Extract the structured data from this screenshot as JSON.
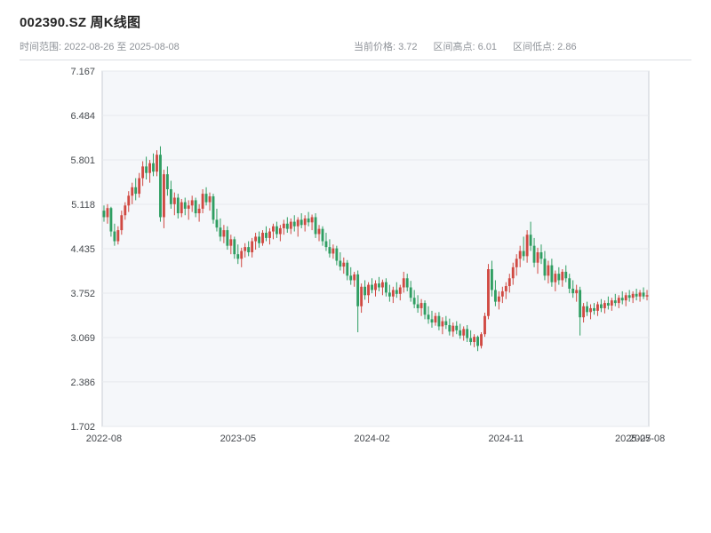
{
  "header": {
    "title": "002390.SZ 周K线图",
    "range_label": "时间范围: 2022-08-26 至 2025-08-08",
    "stat_price": "当前价格: 3.72",
    "stat_high": "区间高点: 6.01",
    "stat_low": "区间低点: 2.86"
  },
  "chart_data": {
    "type": "candlestick",
    "title": "002390.SZ 周K线图",
    "symbol": "002390.SZ",
    "period": "weekly",
    "start_date": "2022-08-26",
    "end_date": "2025-08-08",
    "current_price": 3.72,
    "range_high": 6.01,
    "range_low": 2.86,
    "ylim": [
      1.702,
      7.167
    ],
    "y_ticks": [
      "7.167",
      "6.484",
      "5.801",
      "5.118",
      "4.435",
      "3.752",
      "3.069",
      "2.386",
      "1.702"
    ],
    "x_ticks": [
      {
        "label": "2022-08",
        "index": 0
      },
      {
        "label": "2023-05",
        "index": 38
      },
      {
        "label": "2024-02",
        "index": 76
      },
      {
        "label": "2024-11",
        "index": 114
      },
      {
        "label": "2025-07",
        "index": 150
      },
      {
        "label": "2025-08",
        "index": 154
      }
    ],
    "colors": {
      "up": "#d04942",
      "down": "#2f9e62",
      "plot_bg": "#f5f7fa",
      "plot_border": "#c9ced4",
      "grid": "#e6e9ed"
    },
    "ohlc_format": [
      "open",
      "high",
      "low",
      "close"
    ],
    "ohlc": [
      [
        5.02,
        5.1,
        4.85,
        4.92
      ],
      [
        4.92,
        5.12,
        4.82,
        5.06
      ],
      [
        5.06,
        5.08,
        4.62,
        4.7
      ],
      [
        4.7,
        4.82,
        4.48,
        4.55
      ],
      [
        4.55,
        4.78,
        4.5,
        4.72
      ],
      [
        4.72,
        5.02,
        4.65,
        4.95
      ],
      [
        4.95,
        5.15,
        4.88,
        5.1
      ],
      [
        5.1,
        5.32,
        5.0,
        5.25
      ],
      [
        5.25,
        5.45,
        5.12,
        5.38
      ],
      [
        5.38,
        5.52,
        5.18,
        5.28
      ],
      [
        5.28,
        5.6,
        5.22,
        5.52
      ],
      [
        5.52,
        5.78,
        5.4,
        5.7
      ],
      [
        5.7,
        5.85,
        5.5,
        5.6
      ],
      [
        5.6,
        5.8,
        5.45,
        5.75
      ],
      [
        5.75,
        5.9,
        5.55,
        5.62
      ],
      [
        5.62,
        5.95,
        5.55,
        5.88
      ],
      [
        5.88,
        6.01,
        4.85,
        4.92
      ],
      [
        4.92,
        5.65,
        4.75,
        5.58
      ],
      [
        5.58,
        5.7,
        5.25,
        5.35
      ],
      [
        5.35,
        5.48,
        5.05,
        5.12
      ],
      [
        5.12,
        5.3,
        4.95,
        5.22
      ],
      [
        5.22,
        5.28,
        4.9,
        4.98
      ],
      [
        4.98,
        5.2,
        4.92,
        5.15
      ],
      [
        5.15,
        5.22,
        4.95,
        5.05
      ],
      [
        5.05,
        5.18,
        4.88,
        5.1
      ],
      [
        5.1,
        5.25,
        5.0,
        5.18
      ],
      [
        5.18,
        5.22,
        4.92,
        4.98
      ],
      [
        4.98,
        5.12,
        4.85,
        5.05
      ],
      [
        5.05,
        5.35,
        4.98,
        5.28
      ],
      [
        5.28,
        5.38,
        5.1,
        5.15
      ],
      [
        5.15,
        5.3,
        5.02,
        5.24
      ],
      [
        5.24,
        5.28,
        4.82,
        4.88
      ],
      [
        4.88,
        5.05,
        4.7,
        4.76
      ],
      [
        4.76,
        4.9,
        4.55,
        4.62
      ],
      [
        4.62,
        4.8,
        4.52,
        4.72
      ],
      [
        4.72,
        4.78,
        4.42,
        4.48
      ],
      [
        4.48,
        4.65,
        4.35,
        4.58
      ],
      [
        4.58,
        4.62,
        4.28,
        4.35
      ],
      [
        4.35,
        4.5,
        4.2,
        4.28
      ],
      [
        4.28,
        4.45,
        4.15,
        4.4
      ],
      [
        4.4,
        4.52,
        4.3,
        4.46
      ],
      [
        4.46,
        4.55,
        4.32,
        4.38
      ],
      [
        4.38,
        4.6,
        4.3,
        4.55
      ],
      [
        4.55,
        4.68,
        4.42,
        4.62
      ],
      [
        4.62,
        4.7,
        4.45,
        4.52
      ],
      [
        4.52,
        4.72,
        4.48,
        4.68
      ],
      [
        4.68,
        4.78,
        4.55,
        4.6
      ],
      [
        4.6,
        4.75,
        4.5,
        4.7
      ],
      [
        4.7,
        4.82,
        4.58,
        4.78
      ],
      [
        4.78,
        4.85,
        4.6,
        4.66
      ],
      [
        4.66,
        4.8,
        4.55,
        4.75
      ],
      [
        4.75,
        4.88,
        4.65,
        4.82
      ],
      [
        4.82,
        4.92,
        4.68,
        4.74
      ],
      [
        4.74,
        4.9,
        4.66,
        4.85
      ],
      [
        4.85,
        4.95,
        4.7,
        4.78
      ],
      [
        4.78,
        4.92,
        4.62,
        4.88
      ],
      [
        4.88,
        4.98,
        4.75,
        4.8
      ],
      [
        4.8,
        4.95,
        4.7,
        4.9
      ],
      [
        4.9,
        5.0,
        4.78,
        4.84
      ],
      [
        4.84,
        4.96,
        4.72,
        4.92
      ],
      [
        4.92,
        4.98,
        4.6,
        4.66
      ],
      [
        4.66,
        4.8,
        4.55,
        4.74
      ],
      [
        4.74,
        4.78,
        4.48,
        4.55
      ],
      [
        4.55,
        4.68,
        4.4,
        4.46
      ],
      [
        4.46,
        4.58,
        4.3,
        4.36
      ],
      [
        4.36,
        4.5,
        4.28,
        4.44
      ],
      [
        4.44,
        4.48,
        4.18,
        4.25
      ],
      [
        4.25,
        4.38,
        4.1,
        4.16
      ],
      [
        4.16,
        4.3,
        4.05,
        4.22
      ],
      [
        4.22,
        4.26,
        3.95,
        4.02
      ],
      [
        4.02,
        4.15,
        3.88,
        3.95
      ],
      [
        3.95,
        4.08,
        3.85,
        4.04
      ],
      [
        4.04,
        4.1,
        3.15,
        3.55
      ],
      [
        3.55,
        3.9,
        3.45,
        3.85
      ],
      [
        3.85,
        3.95,
        3.65,
        3.72
      ],
      [
        3.72,
        3.92,
        3.6,
        3.88
      ],
      [
        3.88,
        3.98,
        3.75,
        3.8
      ],
      [
        3.8,
        3.95,
        3.7,
        3.9
      ],
      [
        3.9,
        4.0,
        3.78,
        3.84
      ],
      [
        3.84,
        3.96,
        3.72,
        3.92
      ],
      [
        3.92,
        3.98,
        3.7,
        3.76
      ],
      [
        3.76,
        3.88,
        3.62,
        3.7
      ],
      [
        3.7,
        3.85,
        3.6,
        3.8
      ],
      [
        3.8,
        3.92,
        3.68,
        3.74
      ],
      [
        3.74,
        3.88,
        3.64,
        3.84
      ],
      [
        3.84,
        4.08,
        3.76,
        3.98
      ],
      [
        3.98,
        4.05,
        3.78,
        3.84
      ],
      [
        3.84,
        3.94,
        3.62,
        3.68
      ],
      [
        3.68,
        3.8,
        3.52,
        3.58
      ],
      [
        3.58,
        3.72,
        3.45,
        3.52
      ],
      [
        3.52,
        3.66,
        3.4,
        3.6
      ],
      [
        3.6,
        3.64,
        3.35,
        3.42
      ],
      [
        3.42,
        3.55,
        3.28,
        3.35
      ],
      [
        3.35,
        3.48,
        3.22,
        3.3
      ],
      [
        3.3,
        3.45,
        3.25,
        3.4
      ],
      [
        3.4,
        3.46,
        3.18,
        3.24
      ],
      [
        3.24,
        3.38,
        3.12,
        3.32
      ],
      [
        3.32,
        3.4,
        3.2,
        3.26
      ],
      [
        3.26,
        3.36,
        3.1,
        3.16
      ],
      [
        3.16,
        3.3,
        3.08,
        3.25
      ],
      [
        3.25,
        3.32,
        3.12,
        3.18
      ],
      [
        3.18,
        3.28,
        3.05,
        3.1
      ],
      [
        3.1,
        3.24,
        3.02,
        3.2
      ],
      [
        3.2,
        3.26,
        3.0,
        3.06
      ],
      [
        3.06,
        3.18,
        2.95,
        3.0
      ],
      [
        3.0,
        3.12,
        2.92,
        3.08
      ],
      [
        3.08,
        3.1,
        2.86,
        2.94
      ],
      [
        2.94,
        3.15,
        2.9,
        3.12
      ],
      [
        3.12,
        3.45,
        3.08,
        3.4
      ],
      [
        3.4,
        4.2,
        3.35,
        4.12
      ],
      [
        4.12,
        4.25,
        3.7,
        3.8
      ],
      [
        3.8,
        3.95,
        3.55,
        3.62
      ],
      [
        3.62,
        3.78,
        3.5,
        3.7
      ],
      [
        3.7,
        3.85,
        3.6,
        3.78
      ],
      [
        3.78,
        3.92,
        3.66,
        3.86
      ],
      [
        3.86,
        4.05,
        3.76,
        3.98
      ],
      [
        3.98,
        4.22,
        3.88,
        4.15
      ],
      [
        4.15,
        4.35,
        4.02,
        4.28
      ],
      [
        4.28,
        4.48,
        4.15,
        4.4
      ],
      [
        4.4,
        4.62,
        4.25,
        4.32
      ],
      [
        4.32,
        4.72,
        4.22,
        4.65
      ],
      [
        4.65,
        4.85,
        4.4,
        4.48
      ],
      [
        4.48,
        4.6,
        4.15,
        4.22
      ],
      [
        4.22,
        4.45,
        4.05,
        4.38
      ],
      [
        4.38,
        4.5,
        4.2,
        4.28
      ],
      [
        4.28,
        4.4,
        3.95,
        4.02
      ],
      [
        4.02,
        4.25,
        3.9,
        4.18
      ],
      [
        4.18,
        4.28,
        3.85,
        3.92
      ],
      [
        3.92,
        4.1,
        3.78,
        4.05
      ],
      [
        4.05,
        4.15,
        3.88,
        3.95
      ],
      [
        3.95,
        4.12,
        3.85,
        4.08
      ],
      [
        4.08,
        4.18,
        3.92,
        3.98
      ],
      [
        3.98,
        4.05,
        3.75,
        3.82
      ],
      [
        3.82,
        3.95,
        3.68,
        3.75
      ],
      [
        3.75,
        3.88,
        3.62,
        3.8
      ],
      [
        3.8,
        3.85,
        3.1,
        3.38
      ],
      [
        3.38,
        3.6,
        3.3,
        3.55
      ],
      [
        3.55,
        3.62,
        3.4,
        3.46
      ],
      [
        3.46,
        3.58,
        3.35,
        3.52
      ],
      [
        3.52,
        3.6,
        3.42,
        3.48
      ],
      [
        3.48,
        3.62,
        3.4,
        3.58
      ],
      [
        3.58,
        3.66,
        3.46,
        3.52
      ],
      [
        3.52,
        3.64,
        3.44,
        3.6
      ],
      [
        3.6,
        3.7,
        3.5,
        3.56
      ],
      [
        3.56,
        3.68,
        3.48,
        3.64
      ],
      [
        3.64,
        3.74,
        3.55,
        3.6
      ],
      [
        3.6,
        3.72,
        3.52,
        3.68
      ],
      [
        3.68,
        3.78,
        3.58,
        3.64
      ],
      [
        3.64,
        3.76,
        3.55,
        3.72
      ],
      [
        3.72,
        3.8,
        3.62,
        3.68
      ],
      [
        3.68,
        3.78,
        3.6,
        3.74
      ],
      [
        3.74,
        3.82,
        3.64,
        3.7
      ],
      [
        3.7,
        3.8,
        3.62,
        3.76
      ],
      [
        3.76,
        3.84,
        3.66,
        3.7
      ],
      [
        3.7,
        3.8,
        3.64,
        3.72
      ]
    ]
  }
}
